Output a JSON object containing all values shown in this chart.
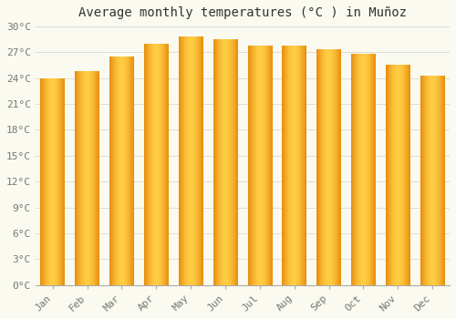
{
  "title": "Average monthly temperatures (°C ) in Muñoz",
  "months": [
    "Jan",
    "Feb",
    "Mar",
    "Apr",
    "May",
    "Jun",
    "Jul",
    "Aug",
    "Sep",
    "Oct",
    "Nov",
    "Dec"
  ],
  "values": [
    24.0,
    24.8,
    26.5,
    28.0,
    28.8,
    28.5,
    27.8,
    27.8,
    27.3,
    26.8,
    25.5,
    24.3
  ],
  "bar_color_center": "#FFBB33",
  "bar_color_edge": "#E89010",
  "background_color": "#FAFAF0",
  "grid_color": "#DDDDDD",
  "ylim": [
    0,
    30
  ],
  "yticks": [
    0,
    3,
    6,
    9,
    12,
    15,
    18,
    21,
    24,
    27,
    30
  ],
  "title_fontsize": 10,
  "tick_fontsize": 8,
  "tick_color": "#777777"
}
